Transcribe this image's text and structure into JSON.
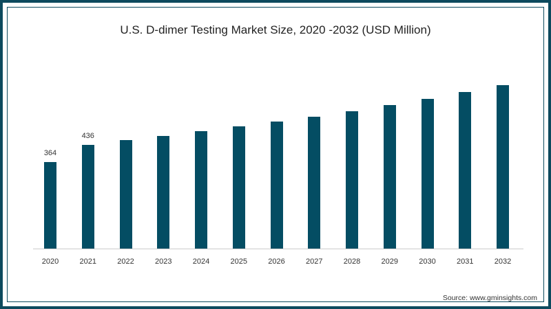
{
  "title": "U.S. D-dimer Testing Market Size, 2020 -2032 (USD Million)",
  "source": "Source: www.gminsights.com",
  "colors": {
    "bar": "#044d63",
    "frame": "#0d4a5e",
    "axis": "#cccccc"
  },
  "chart_data": {
    "type": "bar",
    "title": "U.S. D-dimer Testing Market Size, 2020 -2032 (USD Million)",
    "xlabel": "",
    "ylabel": "USD Million",
    "categories": [
      "2020",
      "2021",
      "2022",
      "2023",
      "2024",
      "2025",
      "2026",
      "2027",
      "2028",
      "2029",
      "2030",
      "2031",
      "2032"
    ],
    "values": [
      364,
      436,
      456,
      474,
      494,
      514,
      535,
      555,
      578,
      604,
      630,
      659,
      688
    ],
    "data_labels": {
      "2020": "364",
      "2021": "436"
    },
    "ylim": [
      0,
      800
    ],
    "grid": false,
    "legend": null
  }
}
